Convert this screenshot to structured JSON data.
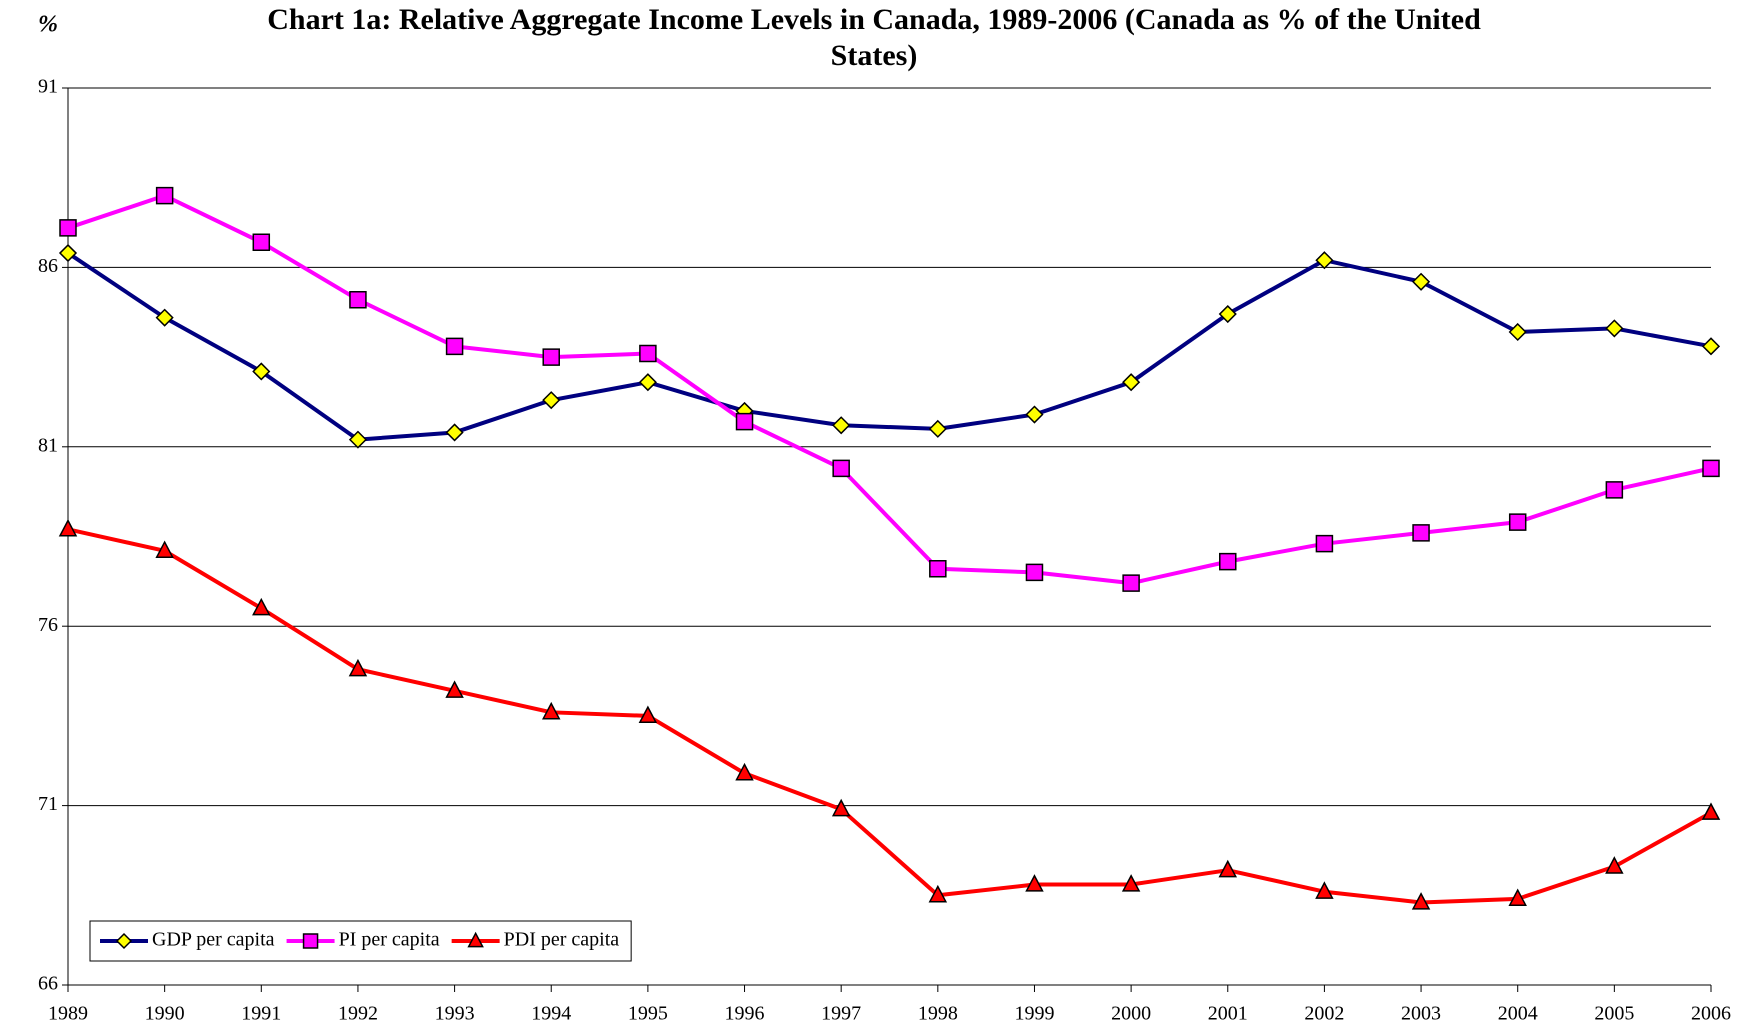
{
  "chart_data": {
    "type": "line",
    "title": "Chart 1a: Relative Aggregate Income Levels in Canada, 1989-2006 (Canada as % of the United States)",
    "y_label": "%",
    "categories": [
      "1989",
      "1990",
      "1991",
      "1992",
      "1993",
      "1994",
      "1995",
      "1996",
      "1997",
      "1998",
      "1999",
      "2000",
      "2001",
      "2002",
      "2003",
      "2004",
      "2005",
      "2006"
    ],
    "series": [
      {
        "name": "GDP per capita",
        "color": "#000080",
        "marker": "diamond",
        "marker_color": "#ffff00",
        "values": [
          86.4,
          84.6,
          83.1,
          81.2,
          81.4,
          82.3,
          82.8,
          82.0,
          81.6,
          81.5,
          81.9,
          82.8,
          84.7,
          86.2,
          85.6,
          84.2,
          84.3,
          83.8
        ]
      },
      {
        "name": "PI per capita",
        "color": "#ff00ff",
        "marker": "square",
        "marker_color": "#ff00ff",
        "values": [
          87.1,
          88.0,
          86.7,
          85.1,
          83.8,
          83.5,
          83.6,
          81.7,
          80.4,
          77.6,
          77.5,
          77.2,
          77.8,
          78.3,
          78.6,
          78.9,
          79.8,
          80.4
        ]
      },
      {
        "name": "PDI per capita",
        "color": "#ff0000",
        "marker": "triangle",
        "marker_color": "#ff0000",
        "values": [
          78.7,
          78.1,
          76.5,
          74.8,
          74.2,
          73.6,
          73.5,
          71.9,
          70.9,
          68.5,
          68.8,
          68.8,
          69.2,
          68.6,
          68.3,
          68.4,
          69.3,
          70.8
        ]
      }
    ],
    "ylim": [
      66,
      91
    ],
    "yticks": [
      66,
      71,
      76,
      81,
      86,
      91
    ],
    "grid": true,
    "legend": "bottom-left"
  }
}
